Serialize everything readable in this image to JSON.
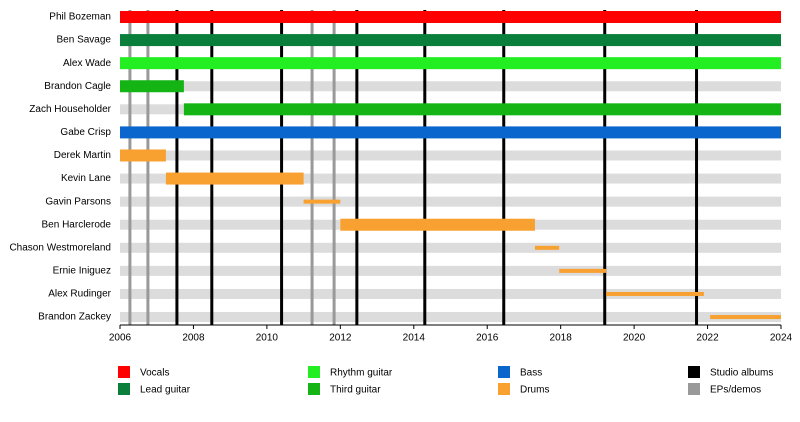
{
  "chart_data": {
    "type": "timeline",
    "xlim": [
      2006,
      2024
    ],
    "xticks": [
      2006,
      2008,
      2010,
      2012,
      2014,
      2016,
      2018,
      2020,
      2022,
      2024
    ],
    "series": [
      {
        "name": "Vocals",
        "color": "#ff0000",
        "bars": [
          {
            "label": "Phil Bozeman",
            "start": 2006,
            "end": 2024
          }
        ]
      },
      {
        "name": "Lead guitar",
        "color": "#0a7f3c",
        "bars": [
          {
            "label": "Ben Savage",
            "start": 2006,
            "end": 2024
          }
        ]
      },
      {
        "name": "Rhythm guitar",
        "color": "#22ee22",
        "bars": [
          {
            "label": "Alex Wade",
            "start": 2006,
            "end": 2024
          }
        ]
      },
      {
        "name": "Third guitar",
        "color": "#14b414",
        "bars": [
          {
            "label": "Brandon Cagle",
            "start": 2006,
            "end": 2007.74
          },
          {
            "label": "Zach Householder",
            "start": 2007.74,
            "end": 2024
          }
        ]
      },
      {
        "name": "Bass",
        "color": "#0a66cc",
        "bars": [
          {
            "label": "Gabe Crisp",
            "start": 2006,
            "end": 2024
          }
        ]
      },
      {
        "name": "Drums",
        "color": "#f8a030",
        "bars": [
          {
            "label": "Derek Martin",
            "start": 2006,
            "end": 2007.25
          },
          {
            "label": "Kevin Lane",
            "start": 2007.25,
            "end": 2011.0
          },
          {
            "label": "Gavin Parsons",
            "start": 2011.0,
            "end": 2012.0,
            "thin": true
          },
          {
            "label": "Ben Harclerode",
            "start": 2012.0,
            "end": 2017.3
          },
          {
            "label": "Chason Westmoreland",
            "start": 2017.3,
            "end": 2017.96,
            "thin": true
          },
          {
            "label": "Ernie Iniguez",
            "start": 2017.96,
            "end": 2019.24,
            "thin": true
          },
          {
            "label": "Alex Rudinger",
            "start": 2019.24,
            "end": 2021.9,
            "thin": true
          },
          {
            "label": "Brandon Zackey",
            "start": 2022.07,
            "end": 2024,
            "thin": true
          }
        ]
      }
    ],
    "events": [
      {
        "name": "Studio albums",
        "color": "#000000",
        "x": [
          2007.55,
          2008.5,
          2010.4,
          2012.45,
          2014.3,
          2016.45,
          2019.2,
          2021.7
        ]
      },
      {
        "name": "EPs/demos",
        "color": "#999999",
        "x": [
          2006.27,
          2006.76,
          2011.23,
          2011.83
        ]
      }
    ]
  }
}
